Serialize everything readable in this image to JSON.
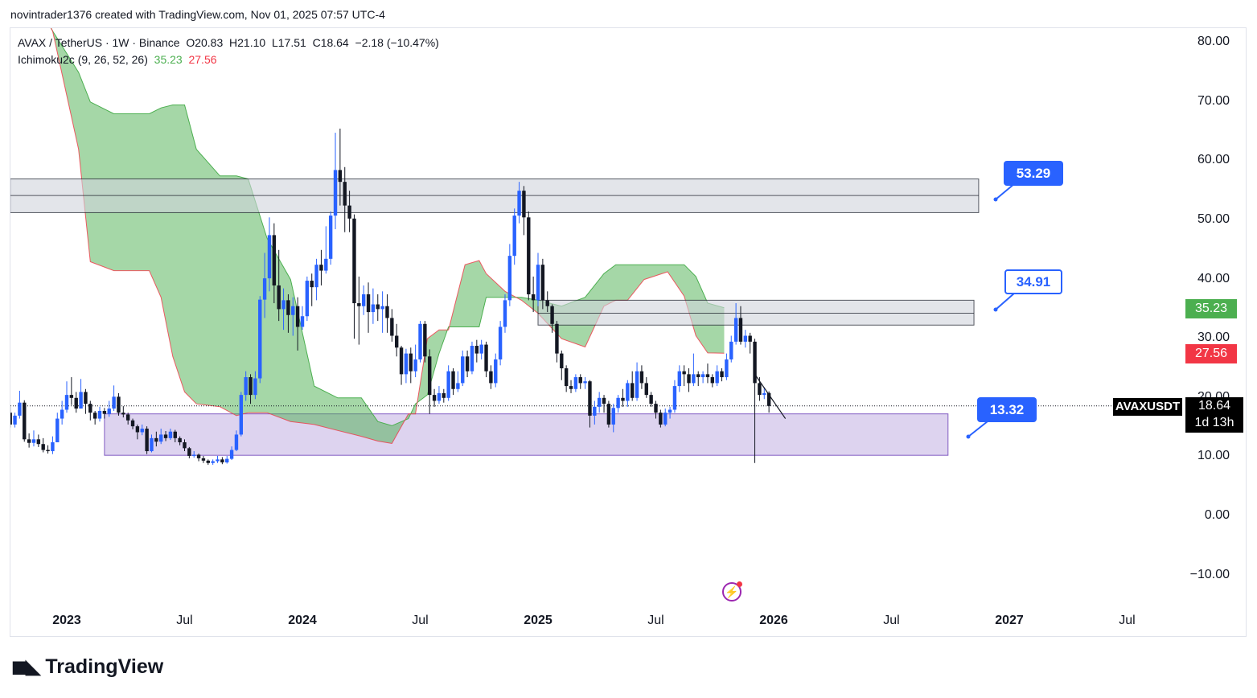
{
  "header": {
    "publish_line": "novintrader1376 created with TradingView.com, Nov 01, 2025 07:57 UTC-4"
  },
  "legend": {
    "symbol_line": "AVAX / TetherUS · 1W · Binance",
    "open": "O20.83",
    "high": "H21.10",
    "low": "L17.51",
    "close": "C18.64",
    "change": "−2.18 (−10.47%)",
    "indicator": "Ichimoku2c (9, 26, 52, 26)",
    "ind_val1": "35.23",
    "ind_val2": "27.56"
  },
  "price_scale": {
    "symbol_badge": "AVAXUSDT",
    "last_price": "18.64",
    "countdown": "1d 13h",
    "cloud_top_badge": "35.23",
    "cloud_bottom_badge": "27.56"
  },
  "callouts": {
    "resistance_high": "53.29",
    "resistance_mid": "34.91",
    "support": "13.32"
  },
  "colors": {
    "bull": "#2962ff",
    "bear": "#131722",
    "cloud": "#4caf50",
    "cloud_edge": "#f23645",
    "zone_gray": "#d1d4dc",
    "zone_purple": "#d1c4e9",
    "accent": "#2962ff"
  },
  "brand": {
    "name": "TradingView"
  },
  "chart_data": {
    "type": "candlestick",
    "title": "AVAX / TetherUS · 1W · Binance",
    "ylim": [
      -10,
      80
    ],
    "y_ticks": [
      "80.00",
      "70.00",
      "60.00",
      "50.00",
      "40.00",
      "30.00",
      "20.00",
      "10.00",
      "0.00",
      "−10.00"
    ],
    "x_ticks": [
      {
        "label": "2023",
        "major": true,
        "t": 0
      },
      {
        "label": "Jul",
        "major": false,
        "t": 0.5
      },
      {
        "label": "2024",
        "major": true,
        "t": 1
      },
      {
        "label": "Jul",
        "major": false,
        "t": 1.5
      },
      {
        "label": "2025",
        "major": true,
        "t": 2
      },
      {
        "label": "Jul",
        "major": false,
        "t": 2.5
      },
      {
        "label": "2026",
        "major": true,
        "t": 3
      },
      {
        "label": "Jul",
        "major": false,
        "t": 3.5
      },
      {
        "label": "2027",
        "major": true,
        "t": 4
      },
      {
        "label": "Jul",
        "major": false,
        "t": 4.5
      }
    ],
    "zones": [
      {
        "name": "upper-resistance-zone",
        "low": 51.3,
        "high": 57.0,
        "mid": 54.2,
        "t0": -0.24,
        "t1": 3.87
      },
      {
        "name": "mid-resistance-zone",
        "low": 32.3,
        "high": 36.5,
        "mid": 34.3,
        "t0": 2.0,
        "t1": 3.85
      },
      {
        "name": "support-zone",
        "low": 10.3,
        "high": 17.3,
        "t0": 0.16,
        "t1": 3.74
      }
    ],
    "cloud": {
      "t": [
        -0.24,
        -0.13,
        -0.06,
        0.05,
        0.1,
        0.2,
        0.35,
        0.4,
        0.45,
        0.5,
        0.55,
        0.65,
        0.72,
        0.77,
        0.85,
        0.95,
        1.05,
        1.15,
        1.25,
        1.32,
        1.38,
        1.45,
        1.48,
        1.53,
        1.58,
        1.62,
        1.69,
        1.75,
        1.78,
        1.86,
        1.93,
        2.0,
        2.1,
        2.2,
        2.28,
        2.33,
        2.38,
        2.45,
        2.55,
        2.62,
        2.67,
        2.72,
        2.79
      ],
      "a": [
        87,
        87,
        82,
        75,
        70,
        68,
        68,
        69,
        69.5,
        69.5,
        62,
        57.5,
        57.5,
        57,
        47,
        40,
        22,
        20,
        20,
        16,
        15.3,
        16.5,
        19,
        20.5,
        27.5,
        32,
        32,
        32,
        37,
        37,
        37,
        36.5,
        35.5,
        37,
        41,
        42.5,
        42.5,
        42.5,
        42.5,
        42.5,
        40.5,
        36,
        35.23
      ],
      "b": [
        87,
        87,
        82,
        62,
        43,
        41.5,
        41.5,
        37,
        27,
        21,
        19,
        18.5,
        17,
        17.5,
        17.5,
        16,
        15.5,
        14.5,
        13.5,
        12.7,
        12.3,
        17.3,
        17.3,
        30,
        31.5,
        31.5,
        42.5,
        43.2,
        41,
        38,
        36.5,
        34.3,
        30,
        28.6,
        35.5,
        36.5,
        36.5,
        40,
        41.3,
        37.2,
        30.5,
        27.6,
        27.56
      ]
    },
    "candles": [
      [
        -0.24,
        17.5,
        15.5,
        18.5,
        15
      ],
      [
        -0.22,
        15.5,
        17,
        17.5,
        15
      ],
      [
        -0.2,
        17,
        19.2,
        21.2,
        16.5
      ],
      [
        -0.18,
        19.2,
        13,
        19.6,
        12.6
      ],
      [
        -0.16,
        13,
        12.4,
        14,
        11.6
      ],
      [
        -0.14,
        12.4,
        13,
        14.5,
        11.8
      ],
      [
        -0.12,
        13,
        12.2,
        13.8,
        11.7
      ],
      [
        -0.1,
        12.2,
        11.2,
        13.2,
        10.8
      ],
      [
        -0.08,
        11.2,
        11,
        12,
        10.6
      ],
      [
        -0.06,
        11,
        12.5,
        13.5,
        10.5
      ],
      [
        -0.04,
        12.5,
        16.5,
        17.5,
        12.5
      ],
      [
        -0.02,
        16.5,
        18,
        19.5,
        15.5
      ],
      [
        0.0,
        18,
        20.5,
        22.8,
        17.5
      ],
      [
        0.02,
        20.5,
        20,
        23.5,
        18.8
      ],
      [
        0.04,
        20,
        18.2,
        21,
        17.5
      ],
      [
        0.06,
        18.2,
        21,
        23.2,
        18.2
      ],
      [
        0.08,
        21,
        19,
        21.5,
        17.3
      ],
      [
        0.1,
        19,
        17.5,
        19.5,
        16.2
      ],
      [
        0.12,
        17.5,
        16.5,
        17.8,
        15.5
      ],
      [
        0.14,
        16.5,
        17.8,
        18.5,
        16
      ],
      [
        0.16,
        17.8,
        17.3,
        18.3,
        16.5
      ],
      [
        0.18,
        17.3,
        18.2,
        19.5,
        16.8
      ],
      [
        0.2,
        18.2,
        20.2,
        22.1,
        17.8
      ],
      [
        0.22,
        20.2,
        17.5,
        20.8,
        17
      ],
      [
        0.24,
        17.5,
        17.2,
        18.6,
        16.7
      ],
      [
        0.26,
        17.2,
        16.2,
        17.5,
        15.5
      ],
      [
        0.28,
        16.2,
        15.2,
        16.5,
        14.7
      ],
      [
        0.3,
        15.2,
        14.2,
        15.5,
        13
      ],
      [
        0.32,
        14.2,
        14.8,
        15.5,
        13.7
      ],
      [
        0.34,
        14.8,
        11,
        15.2,
        10.5
      ],
      [
        0.36,
        11,
        13.2,
        13.8,
        10.8
      ],
      [
        0.38,
        13.2,
        12.6,
        14.3,
        11.8
      ],
      [
        0.4,
        12.6,
        13.8,
        14.8,
        12.2
      ],
      [
        0.42,
        13.8,
        13.2,
        14.4,
        12.7
      ],
      [
        0.44,
        13.2,
        14.3,
        14.8,
        12.9
      ],
      [
        0.46,
        14.3,
        13.2,
        14.6,
        12.5
      ],
      [
        0.48,
        13.2,
        12.5,
        13.5,
        12
      ],
      [
        0.5,
        12.5,
        11.5,
        13,
        11
      ],
      [
        0.52,
        11.5,
        10.2,
        11.7,
        9.8
      ],
      [
        0.54,
        10.2,
        10.4,
        11,
        9.9
      ],
      [
        0.56,
        10.4,
        9.8,
        10.6,
        9.3
      ],
      [
        0.58,
        9.8,
        9.4,
        10.2,
        9
      ],
      [
        0.6,
        9.4,
        9,
        9.6,
        8.7
      ],
      [
        0.62,
        9,
        9.3,
        9.6,
        8.7
      ],
      [
        0.64,
        9.3,
        9.6,
        10.2,
        9
      ],
      [
        0.66,
        9.6,
        9.1,
        10,
        8.8
      ],
      [
        0.68,
        9.1,
        9.7,
        10.2,
        8.9
      ],
      [
        0.7,
        9.7,
        11.2,
        11.8,
        9.5
      ],
      [
        0.72,
        11.2,
        13.8,
        14.5,
        11
      ],
      [
        0.74,
        13.8,
        20.5,
        21,
        13.5
      ],
      [
        0.76,
        20.5,
        23.5,
        24.5,
        19.5
      ],
      [
        0.78,
        23.5,
        20.5,
        24,
        19
      ],
      [
        0.8,
        20.5,
        23.3,
        24.5,
        19.8
      ],
      [
        0.82,
        23.3,
        36.6,
        37.2,
        22.5
      ],
      [
        0.84,
        36.6,
        40.2,
        44.5,
        33.5
      ],
      [
        0.86,
        40.2,
        47.5,
        50.5,
        38
      ],
      [
        0.88,
        47.5,
        39,
        49.5,
        36
      ],
      [
        0.9,
        39,
        35,
        45,
        33
      ],
      [
        0.92,
        35,
        36.5,
        38.5,
        31.5
      ],
      [
        0.94,
        36.5,
        34,
        37.5,
        31
      ],
      [
        0.96,
        34,
        35.5,
        37,
        30.5
      ],
      [
        0.98,
        35.5,
        32,
        37,
        28
      ],
      [
        1.0,
        32,
        33.8,
        35.5,
        31.5
      ],
      [
        1.02,
        33.8,
        39.8,
        40.5,
        33
      ],
      [
        1.04,
        39.8,
        38.7,
        41,
        35.5
      ],
      [
        1.06,
        38.7,
        42.5,
        43.5,
        36.5
      ],
      [
        1.08,
        42.5,
        41.5,
        45,
        39
      ],
      [
        1.1,
        41.5,
        43.5,
        49,
        41
      ],
      [
        1.12,
        43.5,
        50.8,
        51.5,
        42.5
      ],
      [
        1.14,
        50.8,
        58.5,
        64.8,
        48.5
      ],
      [
        1.16,
        58.5,
        56.5,
        65.5,
        52.5
      ],
      [
        1.18,
        56.5,
        52.5,
        59,
        48
      ],
      [
        1.2,
        52.5,
        50.3,
        55,
        48
      ],
      [
        1.22,
        50.3,
        36,
        51,
        30
      ],
      [
        1.24,
        36,
        35.5,
        40.5,
        29
      ],
      [
        1.26,
        35.5,
        37.5,
        39,
        34
      ],
      [
        1.28,
        37.5,
        34.5,
        39.5,
        31
      ],
      [
        1.3,
        34.5,
        35.8,
        38.5,
        32.5
      ],
      [
        1.32,
        35.8,
        35,
        37.5,
        33
      ],
      [
        1.34,
        35,
        35.5,
        38,
        31
      ],
      [
        1.36,
        35.5,
        33.5,
        37.5,
        31
      ],
      [
        1.38,
        33.5,
        30.5,
        35,
        29.5
      ],
      [
        1.4,
        30.5,
        28.5,
        32.5,
        27
      ],
      [
        1.42,
        28.5,
        24,
        28.8,
        22.2
      ],
      [
        1.44,
        24,
        27.5,
        28.3,
        22.5
      ],
      [
        1.46,
        27.5,
        24.5,
        28.5,
        22.5
      ],
      [
        1.48,
        24.5,
        26.5,
        29,
        23.5
      ],
      [
        1.5,
        26.5,
        32.5,
        33,
        26
      ],
      [
        1.52,
        32.5,
        27,
        33,
        26
      ],
      [
        1.54,
        27,
        20.5,
        28.2,
        17.3
      ],
      [
        1.56,
        20.5,
        19.5,
        21.5,
        18.5
      ],
      [
        1.58,
        19.5,
        20.8,
        22,
        19
      ],
      [
        1.6,
        20.8,
        20,
        21.5,
        19.2
      ],
      [
        1.62,
        20,
        24.5,
        25.5,
        19.5
      ],
      [
        1.64,
        24.5,
        21.5,
        25,
        20.5
      ],
      [
        1.66,
        21.5,
        22.5,
        24.5,
        21
      ],
      [
        1.68,
        22.5,
        27,
        28,
        22
      ],
      [
        1.7,
        27,
        24.5,
        28,
        23.5
      ],
      [
        1.72,
        24.5,
        28.8,
        29.5,
        24
      ],
      [
        1.74,
        28.8,
        27.5,
        29.8,
        26
      ],
      [
        1.76,
        27.5,
        29,
        29.8,
        26.5
      ],
      [
        1.78,
        29,
        24.5,
        29.5,
        23.5
      ],
      [
        1.8,
        24.5,
        22.5,
        25.5,
        21.5
      ],
      [
        1.82,
        22.5,
        26.5,
        27.5,
        21.8
      ],
      [
        1.84,
        26.5,
        32,
        33,
        25.5
      ],
      [
        1.86,
        32,
        36.5,
        37.5,
        31
      ],
      [
        1.88,
        36.5,
        44,
        46,
        35.5
      ],
      [
        1.9,
        44,
        50.8,
        52,
        42.5
      ],
      [
        1.92,
        50.8,
        55,
        56.5,
        49.5
      ],
      [
        1.94,
        55,
        50.5,
        55.8,
        47.5
      ],
      [
        1.96,
        50.5,
        37.5,
        51.5,
        36.5
      ],
      [
        1.98,
        37.5,
        36.5,
        40.5,
        34.5
      ],
      [
        2.0,
        36.5,
        42.5,
        44.5,
        35.5
      ],
      [
        2.02,
        42.5,
        36.5,
        43.5,
        35
      ],
      [
        2.04,
        36.5,
        35.5,
        38,
        34.5
      ],
      [
        2.06,
        35.5,
        32.5,
        35.8,
        31
      ],
      [
        2.08,
        32.5,
        27.5,
        33,
        26
      ],
      [
        2.1,
        27.5,
        25,
        28,
        23
      ],
      [
        2.12,
        25,
        22,
        25.5,
        21
      ],
      [
        2.14,
        22,
        21.5,
        23,
        20.8
      ],
      [
        2.16,
        21.5,
        23.5,
        24,
        21
      ],
      [
        2.18,
        23.5,
        22.5,
        24,
        21.5
      ],
      [
        2.2,
        22.5,
        22.8,
        23.5,
        21.5
      ],
      [
        2.22,
        22.8,
        17,
        23,
        15
      ],
      [
        2.24,
        17,
        18.5,
        19.5,
        15.5
      ],
      [
        2.26,
        18.5,
        20,
        21,
        17.5
      ],
      [
        2.28,
        20,
        19,
        20.5,
        17.5
      ],
      [
        2.3,
        19,
        15.5,
        19.5,
        15
      ],
      [
        2.32,
        15.5,
        18.3,
        19,
        14.2
      ],
      [
        2.34,
        18.3,
        20,
        20.5,
        17.5
      ],
      [
        2.36,
        20,
        19.5,
        21.5,
        18.5
      ],
      [
        2.38,
        19.5,
        22.5,
        23,
        18.5
      ],
      [
        2.4,
        22.5,
        20,
        24.5,
        19.5
      ],
      [
        2.42,
        20,
        24.5,
        26,
        19.5
      ],
      [
        2.44,
        24.5,
        22.5,
        25.5,
        21.5
      ],
      [
        2.46,
        22.5,
        20.5,
        23.5,
        20
      ],
      [
        2.48,
        20.5,
        19,
        21,
        18.5
      ],
      [
        2.5,
        19,
        17.5,
        19.5,
        16.5
      ],
      [
        2.52,
        17.5,
        15.5,
        18,
        15
      ],
      [
        2.54,
        15.5,
        17.5,
        18.2,
        15.2
      ],
      [
        2.56,
        17.5,
        18,
        18.5,
        16.5
      ],
      [
        2.58,
        18,
        22,
        23,
        17.5
      ],
      [
        2.6,
        22,
        24.5,
        25.5,
        21
      ],
      [
        2.62,
        24.5,
        24,
        25.5,
        22
      ],
      [
        2.64,
        24,
        22.5,
        25,
        21
      ],
      [
        2.66,
        22.5,
        24,
        27.5,
        22
      ],
      [
        2.68,
        24,
        23.5,
        24.5,
        22
      ],
      [
        2.7,
        23.5,
        24,
        24.5,
        22.5
      ],
      [
        2.72,
        24,
        23.5,
        25.8,
        22.5
      ],
      [
        2.74,
        23.5,
        22.5,
        24,
        21.8
      ],
      [
        2.76,
        22.5,
        24.5,
        25.5,
        22
      ],
      [
        2.78,
        24.5,
        23.5,
        25,
        22.8
      ],
      [
        2.8,
        23.5,
        26.5,
        27.5,
        23
      ],
      [
        2.82,
        26.5,
        29.5,
        30.5,
        26
      ],
      [
        2.84,
        29.5,
        33.5,
        36,
        29
      ],
      [
        2.86,
        33.5,
        29.5,
        35.5,
        29
      ],
      [
        2.88,
        29.5,
        30.5,
        31.5,
        28.5
      ],
      [
        2.9,
        30.5,
        29.5,
        31,
        27.5
      ],
      [
        2.92,
        29.5,
        22.5,
        30,
        9.0
      ],
      [
        2.94,
        22.5,
        20.5,
        23.5,
        19.5
      ],
      [
        2.96,
        20.5,
        20.8,
        21.8,
        19.8
      ],
      [
        2.98,
        20.83,
        18.64,
        21.1,
        17.51
      ]
    ]
  }
}
